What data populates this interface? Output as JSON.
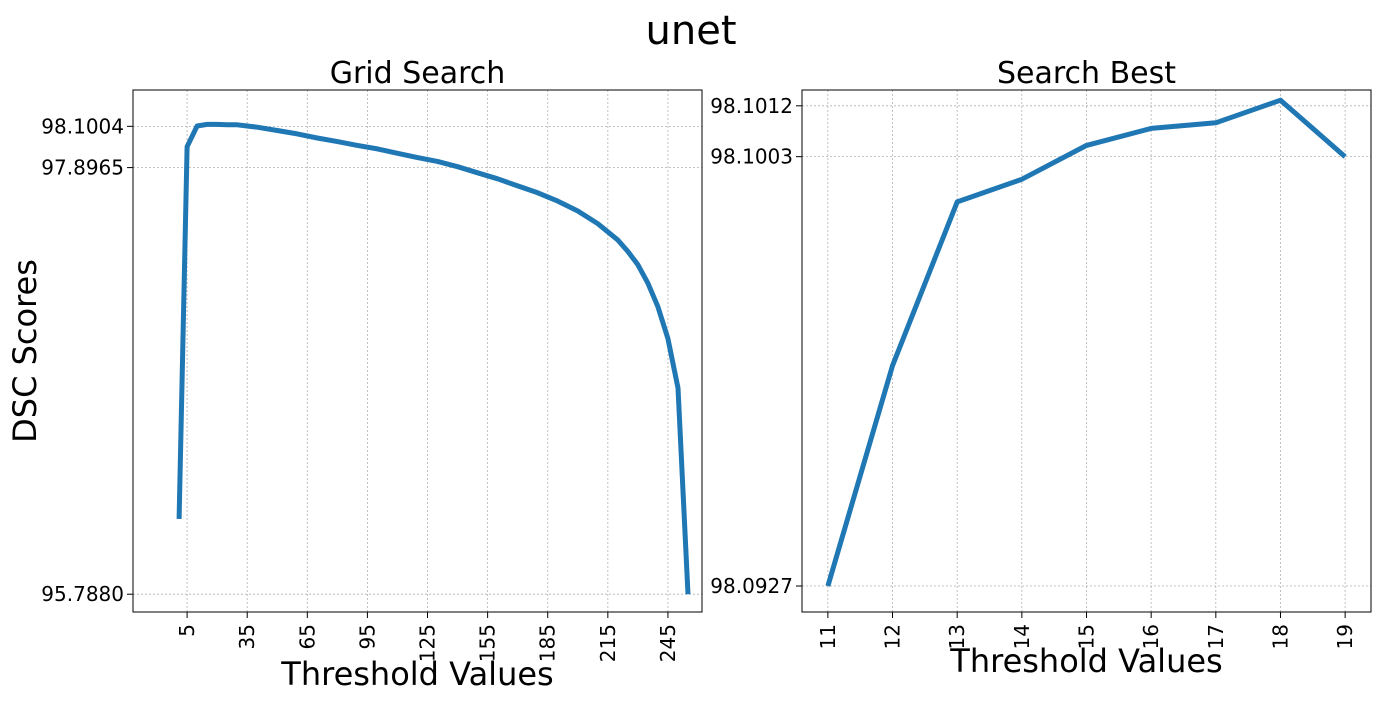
{
  "figure": {
    "suptitle": "unet"
  },
  "chart_data": [
    {
      "type": "line",
      "title": "Grid Search",
      "xlabel": "Threshold Values",
      "ylabel": "DSC Scores",
      "color": "#1f77b4",
      "grid": true,
      "xlim": [
        -22,
        262
      ],
      "ylim": [
        95.7,
        98.28
      ],
      "xticks": [
        5,
        35,
        65,
        95,
        125,
        155,
        185,
        215,
        245
      ],
      "xtick_labels": [
        "5",
        "35",
        "65",
        "95",
        "125",
        "155",
        "185",
        "215",
        "245"
      ],
      "xtick_rotation": -90,
      "yticks": [
        95.788,
        97.8965,
        98.1004
      ],
      "ytick_labels": [
        "95.7880",
        "97.8965",
        "98.1004"
      ],
      "x": [
        1,
        5,
        10,
        15,
        20,
        25,
        30,
        35,
        40,
        50,
        60,
        70,
        80,
        90,
        100,
        110,
        120,
        130,
        140,
        150,
        160,
        170,
        180,
        190,
        200,
        210,
        220,
        225,
        230,
        235,
        240,
        245,
        250,
        255
      ],
      "y": [
        96.16,
        98.0,
        98.102,
        98.11,
        98.11,
        98.108,
        98.108,
        98.102,
        98.096,
        98.08,
        98.063,
        98.043,
        98.025,
        98.006,
        97.989,
        97.967,
        97.946,
        97.927,
        97.901,
        97.871,
        97.841,
        97.806,
        97.772,
        97.731,
        97.682,
        97.619,
        97.538,
        97.482,
        97.416,
        97.325,
        97.209,
        97.052,
        96.807,
        95.788
      ]
    },
    {
      "type": "line",
      "title": "Search Best",
      "xlabel": "Threshold Values",
      "color": "#1f77b4",
      "grid": true,
      "xlim": [
        10.6,
        19.4
      ],
      "ylim": [
        98.09224,
        98.10148
      ],
      "xticks": [
        11,
        12,
        13,
        14,
        15,
        16,
        17,
        18,
        19
      ],
      "xtick_labels": [
        "11",
        "12",
        "13",
        "14",
        "15",
        "16",
        "17",
        "18",
        "19"
      ],
      "xtick_rotation": -90,
      "yticks": [
        98.0927,
        98.1003,
        98.1012
      ],
      "ytick_labels": [
        "98.0927",
        "98.1003",
        "98.1012"
      ],
      "x": [
        11,
        12,
        13,
        14,
        15,
        16,
        17,
        18,
        19
      ],
      "y": [
        98.0927,
        98.0966,
        98.0995,
        98.0999,
        98.1005,
        98.1008,
        98.1009,
        98.1013,
        98.1003
      ]
    }
  ]
}
